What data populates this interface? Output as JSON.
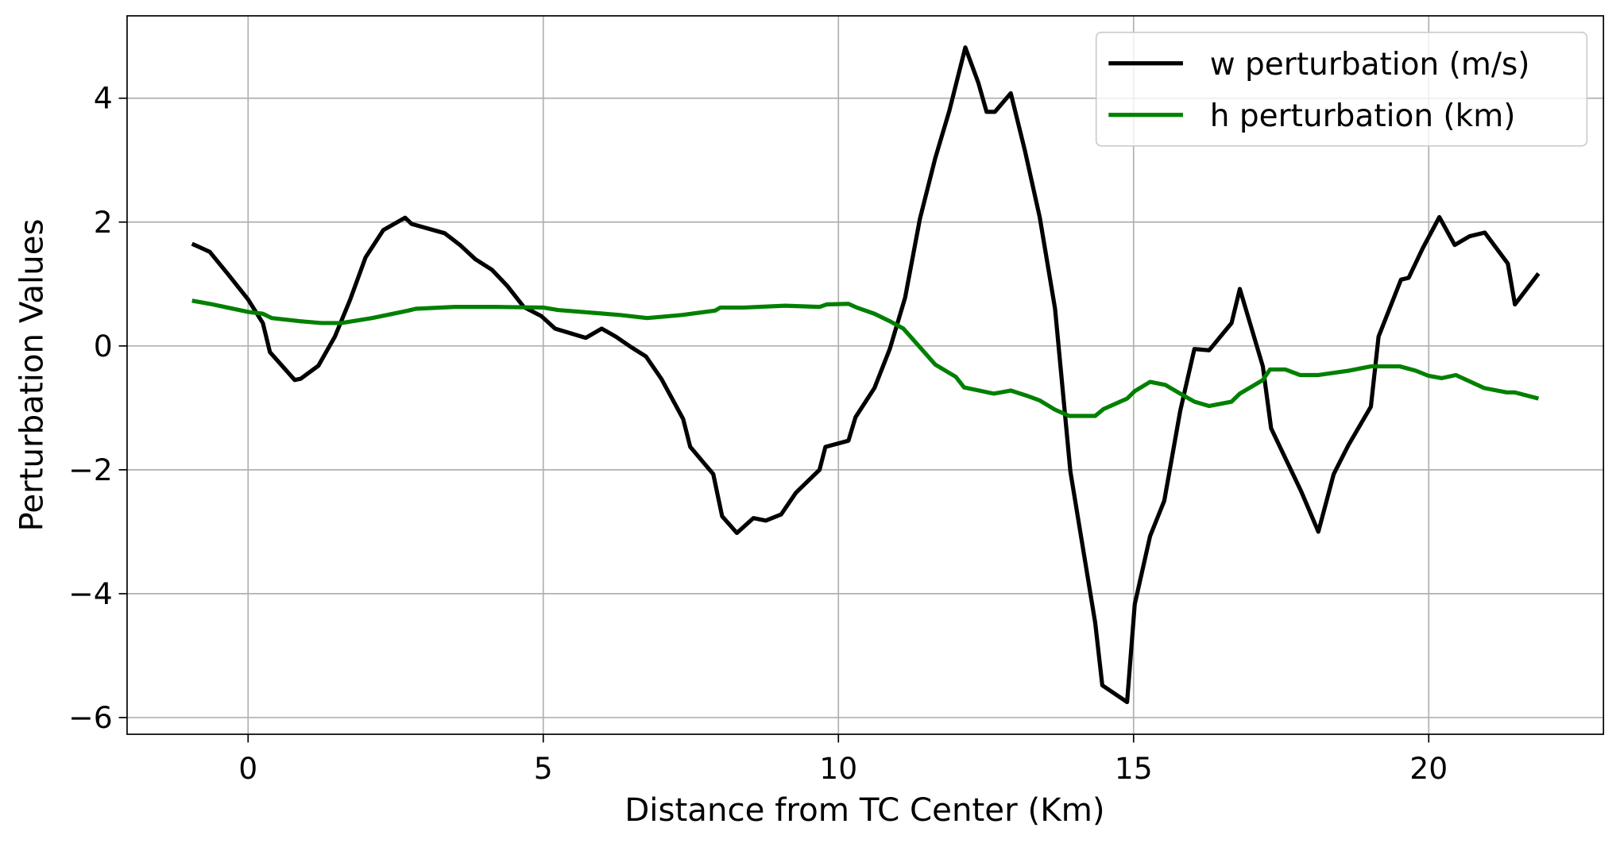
{
  "chart_data": {
    "type": "line",
    "xlabel": "Distance from TC Center (Km)",
    "ylabel": "Perturbation Values",
    "xlim": [
      -2.05,
      22.96
    ],
    "ylim": [
      -6.27,
      5.33
    ],
    "xticks": [
      0,
      5,
      10,
      15,
      20
    ],
    "yticks": [
      {
        "value": -6,
        "label": "−6"
      },
      {
        "value": -4,
        "label": "−4"
      },
      {
        "value": -2,
        "label": "−2"
      },
      0,
      2,
      4
    ],
    "grid": true,
    "legend": "upper right",
    "series": [
      {
        "name": "w perturbation (m/s)",
        "color": "#000000",
        "x": [
          -0.95,
          -0.65,
          -0.35,
          0,
          0.25,
          0.37,
          0.79,
          0.89,
          1.19,
          1.47,
          1.73,
          1.99,
          2.29,
          2.66,
          2.77,
          3.33,
          3.59,
          3.85,
          4.13,
          4.39,
          4.67,
          4.97,
          5.2,
          5.72,
          5.99,
          6.23,
          6.49,
          6.74,
          7,
          7.37,
          7.49,
          7.88,
          8.03,
          8.28,
          8.56,
          8.77,
          9.03,
          9.28,
          9.68,
          9.78,
          10.17,
          10.29,
          10.61,
          10.87,
          11.13,
          11.38,
          11.64,
          11.88,
          12.02,
          12.15,
          12.37,
          12.51,
          12.65,
          12.92,
          13.16,
          13.41,
          13.67,
          13.93,
          14.35,
          14.47,
          14.89,
          15.02,
          15.28,
          15.52,
          15.79,
          16.03,
          16.28,
          16.66,
          16.8,
          17.19,
          17.33,
          17.84,
          18.13,
          18.39,
          18.64,
          19.02,
          19.15,
          19.53,
          19.66,
          19.9,
          20.18,
          20.44,
          20.69,
          20.95,
          21.34,
          21.46,
          21.86
        ],
        "values": [
          1.65,
          1.52,
          1.17,
          0.75,
          0.37,
          -0.1,
          -0.55,
          -0.53,
          -0.32,
          0.15,
          0.75,
          1.43,
          1.87,
          2.07,
          1.97,
          1.82,
          1.63,
          1.4,
          1.23,
          0.97,
          0.63,
          0.48,
          0.28,
          0.13,
          0.28,
          0.15,
          -0.02,
          -0.17,
          -0.53,
          -1.18,
          -1.63,
          -2.07,
          -2.75,
          -3.02,
          -2.78,
          -2.82,
          -2.72,
          -2.37,
          -2.0,
          -1.63,
          -1.53,
          -1.15,
          -0.68,
          -0.05,
          0.78,
          2.05,
          3.03,
          3.8,
          4.33,
          4.82,
          4.25,
          3.78,
          3.78,
          4.08,
          3.15,
          2.08,
          0.6,
          -2.03,
          -4.47,
          -5.48,
          -5.75,
          -4.17,
          -3.07,
          -2.5,
          -1.05,
          -0.05,
          -0.07,
          0.37,
          0.92,
          -0.33,
          -1.33,
          -2.35,
          -3.0,
          -2.07,
          -1.6,
          -0.98,
          0.15,
          1.07,
          1.1,
          1.58,
          2.08,
          1.63,
          1.77,
          1.83,
          1.33,
          0.67,
          1.17
        ]
      },
      {
        "name": "h perturbation (km)",
        "color": "#008000",
        "x": [
          -0.95,
          -0.65,
          -0.35,
          0,
          0.25,
          0.4,
          0.87,
          1.24,
          1.58,
          2.1,
          2.71,
          2.84,
          3.5,
          4.2,
          5,
          5.25,
          6.3,
          6.76,
          7.35,
          7.91,
          8,
          8.4,
          9.1,
          9.68,
          9.8,
          10.17,
          10.31,
          10.61,
          10.87,
          11.1,
          11.38,
          11.64,
          11.99,
          12.13,
          12.63,
          12.92,
          13.18,
          13.41,
          13.67,
          13.91,
          14.35,
          14.49,
          14.89,
          15.02,
          15.28,
          15.54,
          15.79,
          16.03,
          16.28,
          16.66,
          16.8,
          17.19,
          17.31,
          17.57,
          17.82,
          18.13,
          18.64,
          19.02,
          19.51,
          19.78,
          19.99,
          20.22,
          20.46,
          20.94,
          21.32,
          21.46,
          21.86
        ],
        "values": [
          0.73,
          0.68,
          0.62,
          0.55,
          0.52,
          0.45,
          0.4,
          0.37,
          0.37,
          0.45,
          0.57,
          0.6,
          0.63,
          0.63,
          0.62,
          0.58,
          0.5,
          0.45,
          0.5,
          0.57,
          0.62,
          0.62,
          0.65,
          0.63,
          0.67,
          0.68,
          0.62,
          0.52,
          0.4,
          0.28,
          -0.02,
          -0.3,
          -0.5,
          -0.67,
          -0.77,
          -0.72,
          -0.8,
          -0.88,
          -1.03,
          -1.13,
          -1.13,
          -1.02,
          -0.85,
          -0.73,
          -0.58,
          -0.63,
          -0.77,
          -0.9,
          -0.97,
          -0.9,
          -0.77,
          -0.55,
          -0.38,
          -0.38,
          -0.47,
          -0.47,
          -0.4,
          -0.33,
          -0.33,
          -0.4,
          -0.48,
          -0.52,
          -0.47,
          -0.68,
          -0.75,
          -0.75,
          -0.85
        ]
      }
    ]
  }
}
